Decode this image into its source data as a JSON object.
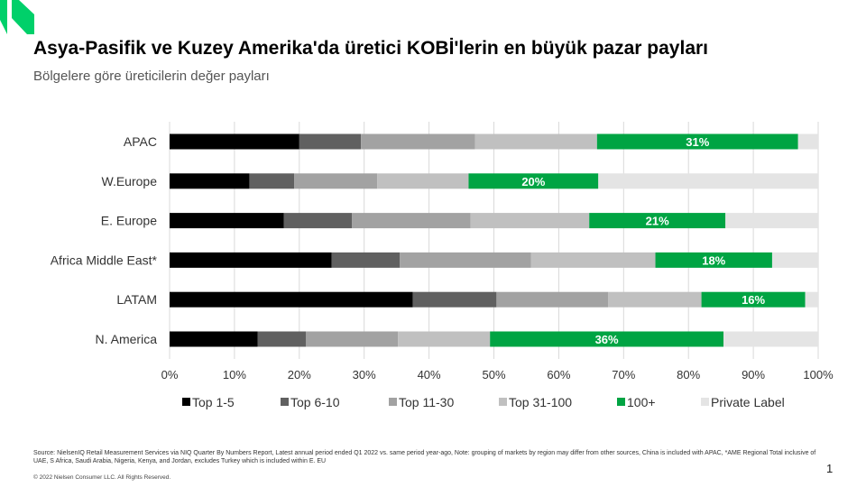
{
  "header": {
    "title": "Asya-Pasifik ve Kuzey Amerika'da üretici KOBİ'lerin en büyük pazar payları",
    "subtitle": "Bölgelere göre üreticilerin değer payları",
    "logo_icon": "nielseniq-chevron-logo",
    "brand_color": "#00D06A"
  },
  "chart_data": {
    "type": "bar",
    "orientation": "horizontal",
    "stacked": true,
    "percent_stacked": true,
    "categories": [
      "APAC",
      "W.Europe",
      "E. Europe",
      "Africa Middle East*",
      "LATAM",
      "N. America"
    ],
    "series": [
      {
        "name": "Top 1-5",
        "color": "#000000",
        "values": [
          20,
          12.3,
          17.6,
          25,
          37.5,
          13.6
        ]
      },
      {
        "name": "Top 6-10",
        "color": "#606060",
        "values": [
          9.5,
          6.9,
          10.5,
          10.5,
          12.9,
          7.4
        ]
      },
      {
        "name": "Top 11-30",
        "color": "#A2A2A2",
        "values": [
          17.6,
          12.8,
          18.3,
          20.2,
          17.2,
          14.2
        ]
      },
      {
        "name": "Top 31-100",
        "color": "#C0C0C0",
        "values": [
          18.8,
          14.1,
          18.3,
          19.2,
          14.4,
          14.2
        ]
      },
      {
        "name": "100+",
        "color": "#00A443",
        "values": [
          31,
          20,
          21,
          18,
          16,
          36
        ]
      },
      {
        "name": "Private Label",
        "color": "#E4E4E4",
        "values": [
          3.1,
          33.9,
          14.3,
          7.1,
          2,
          14.6
        ]
      }
    ],
    "data_labels": {
      "series": "100+",
      "values": [
        "31%",
        "20%",
        "21%",
        "18%",
        "16%",
        "36%"
      ]
    },
    "xlim": [
      0,
      100
    ],
    "x_ticks": [
      "0%",
      "10%",
      "20%",
      "30%",
      "40%",
      "50%",
      "60%",
      "70%",
      "80%",
      "90%",
      "100%"
    ],
    "grid": "vertical",
    "legend_position": "bottom"
  },
  "footer": {
    "source": "Source: NielsenIQ Retail Measurement Services via NIQ Quarter By Numbers Report, Latest annual period ended Q1 2022 vs. same period year-ago, Note: grouping of markets by region may differ from other sources, China is included with APAC, *AME Regional Total inclusive of UAE, S Africa, Saudi Arabia, Nigeria, Kenya, and Jordan, excludes Turkey which is included within E. EU",
    "copyright": "© 2022 Nielsen Consumer LLC. All Rights Reserved.",
    "page_number": "1"
  }
}
